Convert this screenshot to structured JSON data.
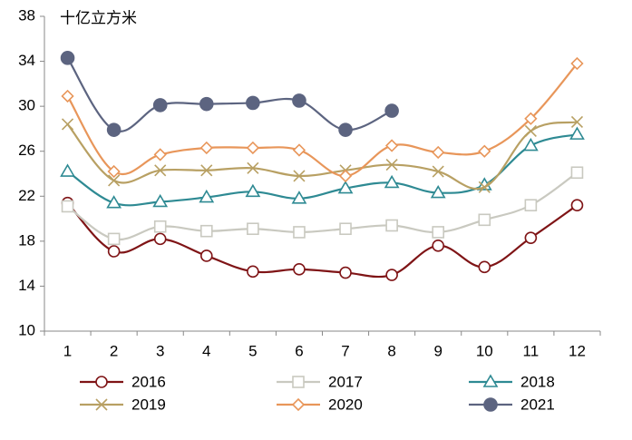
{
  "chart_data": {
    "type": "line",
    "y_label": "十亿立方米",
    "categories": [
      "1",
      "2",
      "3",
      "4",
      "5",
      "6",
      "7",
      "8",
      "9",
      "10",
      "11",
      "12"
    ],
    "ylim": [
      10,
      38
    ],
    "yticks": [
      10,
      14,
      18,
      22,
      26,
      30,
      34,
      38
    ],
    "grid": false,
    "legend": "bottom",
    "series": [
      {
        "name": "2016",
        "color": "#7f1416",
        "marker": "circle-open",
        "values": [
          21.4,
          17.1,
          18.2,
          16.7,
          15.3,
          15.5,
          15.2,
          15.0,
          17.6,
          15.7,
          18.3,
          21.2
        ]
      },
      {
        "name": "2017",
        "color": "#c9c9c0",
        "marker": "square-open",
        "values": [
          21.1,
          18.2,
          19.3,
          18.9,
          19.1,
          18.8,
          19.1,
          19.4,
          18.8,
          19.9,
          21.2,
          24.1
        ]
      },
      {
        "name": "2018",
        "color": "#2e8a93",
        "marker": "triangle-open",
        "values": [
          24.2,
          21.4,
          21.5,
          21.9,
          22.4,
          21.8,
          22.7,
          23.2,
          22.3,
          23.0,
          26.5,
          27.5
        ]
      },
      {
        "name": "2019",
        "color": "#b8a063",
        "marker": "x",
        "values": [
          28.4,
          23.4,
          24.3,
          24.3,
          24.5,
          23.8,
          24.3,
          24.8,
          24.2,
          22.8,
          27.8,
          28.6
        ]
      },
      {
        "name": "2020",
        "color": "#e8965a",
        "marker": "diamond-open",
        "values": [
          30.9,
          24.2,
          25.7,
          26.3,
          26.3,
          26.1,
          23.8,
          26.5,
          25.9,
          26.0,
          28.9,
          33.8
        ]
      },
      {
        "name": "2021",
        "color": "#5c6480",
        "marker": "circle-filled",
        "values": [
          34.3,
          27.9,
          30.1,
          30.2,
          30.3,
          30.5,
          27.9,
          29.6,
          null,
          null,
          null,
          null
        ]
      }
    ]
  }
}
